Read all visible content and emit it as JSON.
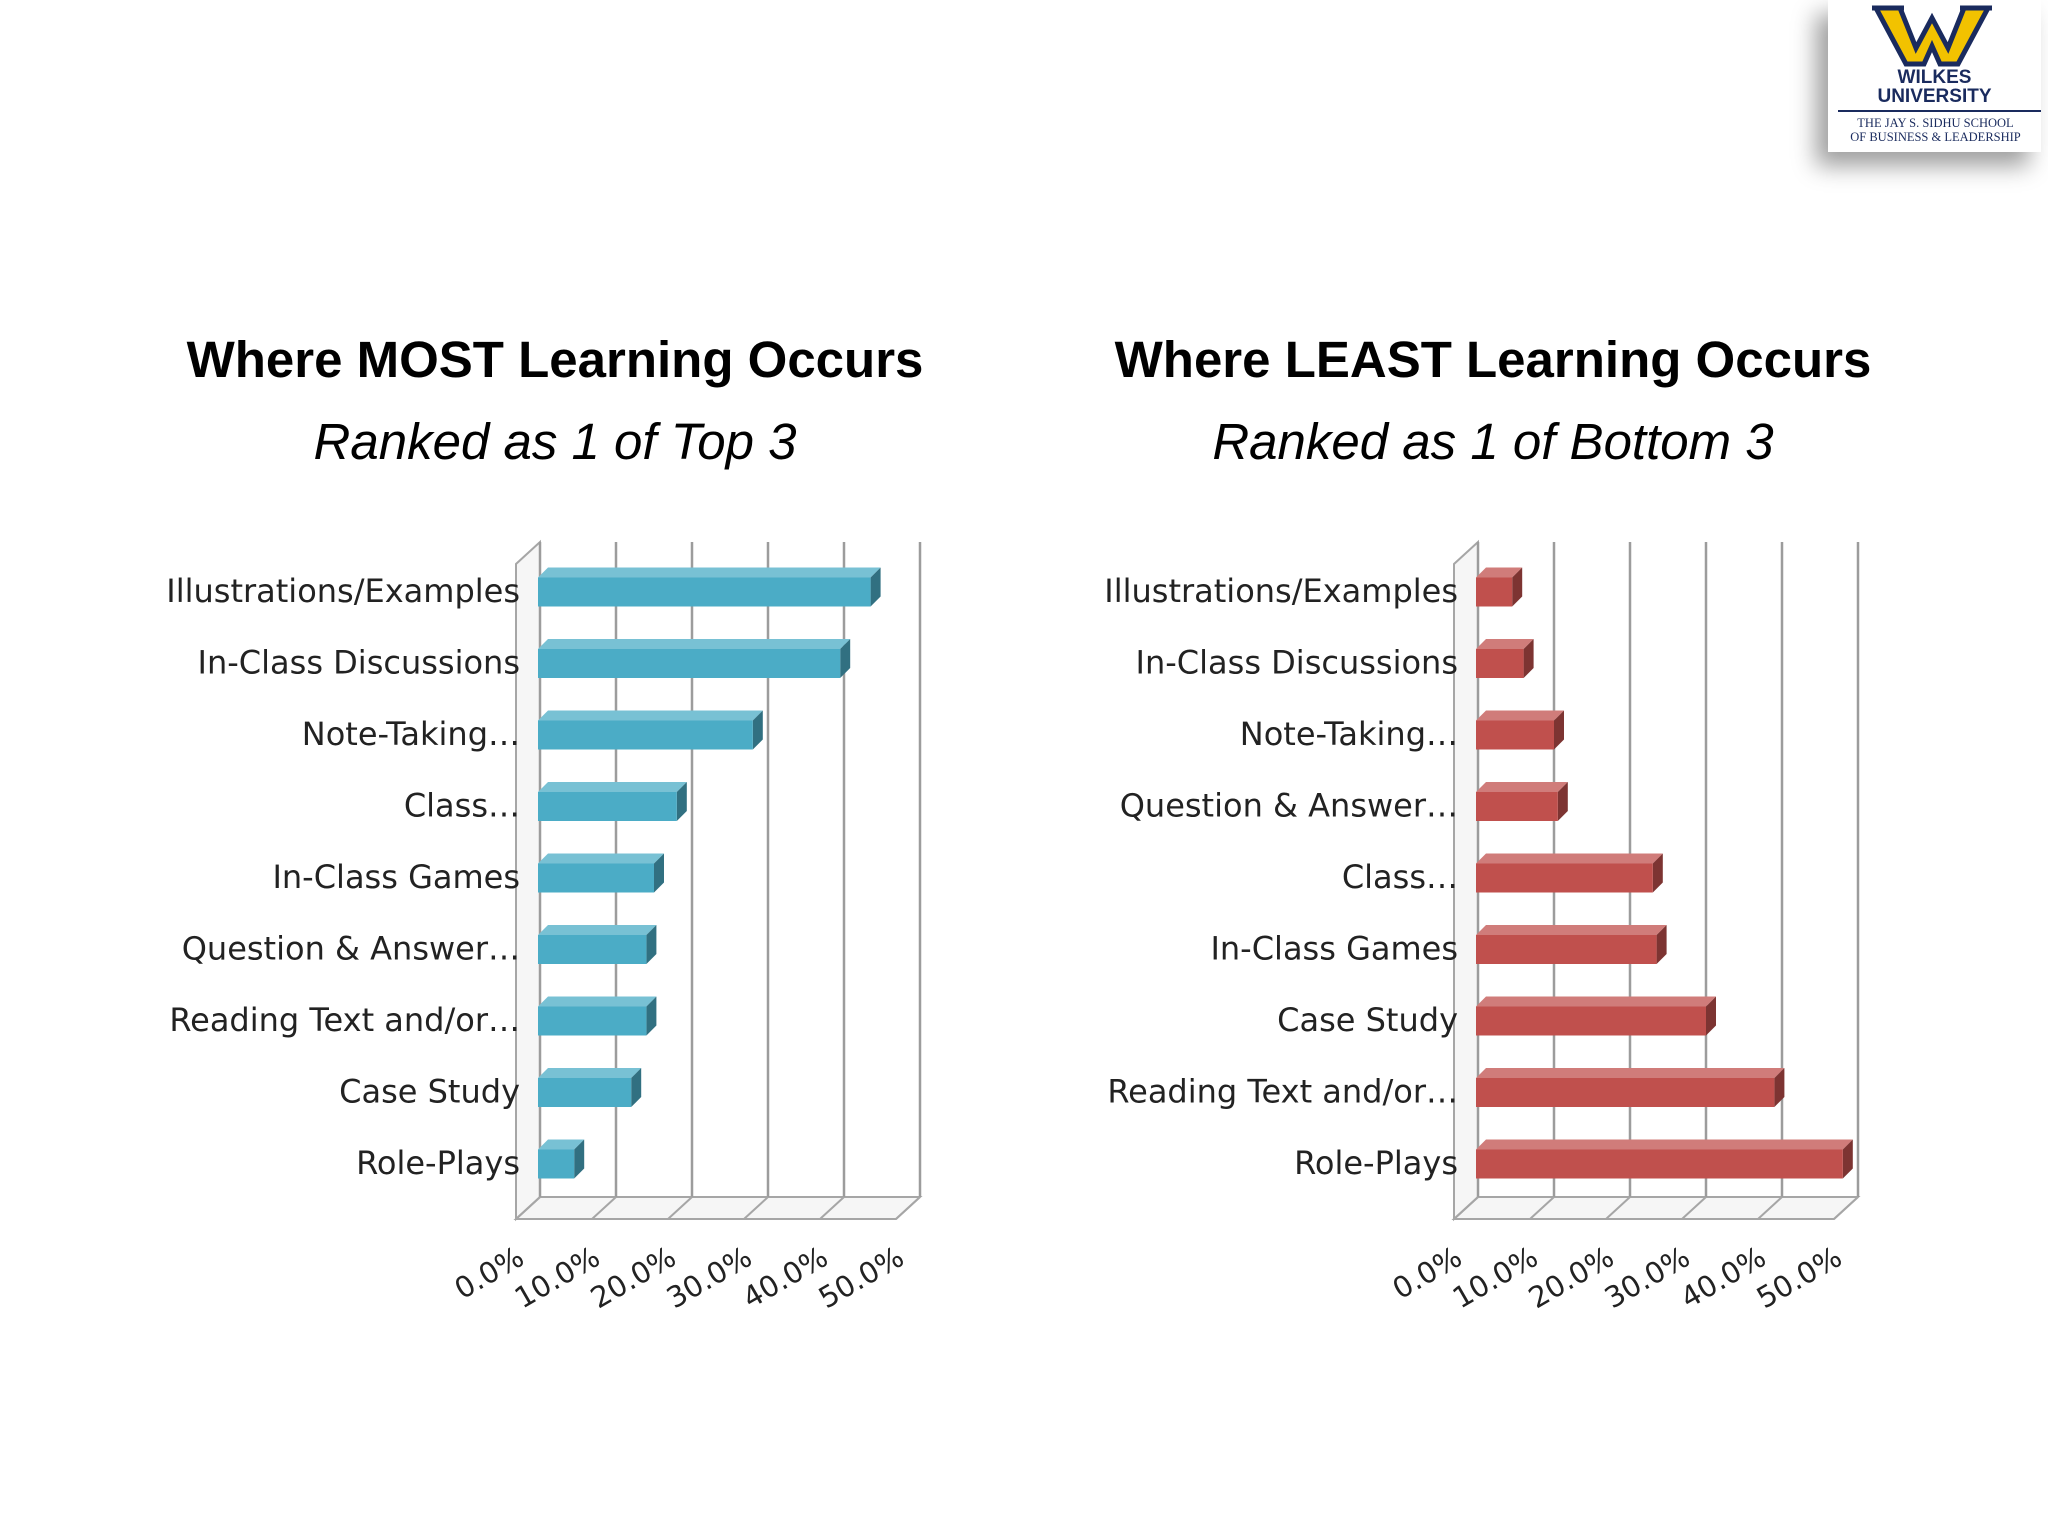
{
  "logo": {
    "line1": "WILKES",
    "line2": "UNIVERSITY",
    "school_line1": "THE JAY S. SIDHU SCHOOL",
    "school_line2": "OF BUSINESS & LEADERSHIP",
    "colors": {
      "navy": "#1a2b5e",
      "gold": "#f2c200"
    }
  },
  "chart_data": [
    {
      "type": "bar",
      "orientation": "horizontal",
      "title": "Where MOST Learning Occurs",
      "subtitle": "Ranked as 1 of Top 3",
      "categories": [
        "Illustrations/Examples",
        "In-Class Discussions",
        "Note-Taking…",
        "Class…",
        "In-Class Games",
        "Question & Answer…",
        "Reading Text and/or…",
        "Case Study",
        "Role-Plays"
      ],
      "values": [
        43.5,
        39.5,
        28,
        18,
        15,
        14,
        14,
        12,
        4.5
      ],
      "x_tick_labels": [
        "0.0%",
        "10.0%",
        "20.0%",
        "30.0%",
        "40.0%",
        "50.0%"
      ],
      "xlim": [
        0,
        50
      ],
      "grid": true,
      "color": "#4bacc6",
      "style": "3d"
    },
    {
      "type": "bar",
      "orientation": "horizontal",
      "title": "Where LEAST Learning Occurs",
      "subtitle": "Ranked as 1 of Bottom 3",
      "categories": [
        "Illustrations/Examples",
        "In-Class Discussions",
        "Note-Taking…",
        "Question & Answer…",
        "Class…",
        "In-Class Games",
        "Case Study",
        "Reading Text and/or…",
        "Role-Plays"
      ],
      "values": [
        4.5,
        6,
        10,
        10.5,
        23,
        23.5,
        30,
        39,
        48
      ],
      "x_tick_labels": [
        "0.0%",
        "10.0%",
        "20.0%",
        "30.0%",
        "40.0%",
        "50.0%"
      ],
      "xlim": [
        0,
        50
      ],
      "grid": true,
      "color": "#c0504d",
      "style": "3d"
    }
  ]
}
